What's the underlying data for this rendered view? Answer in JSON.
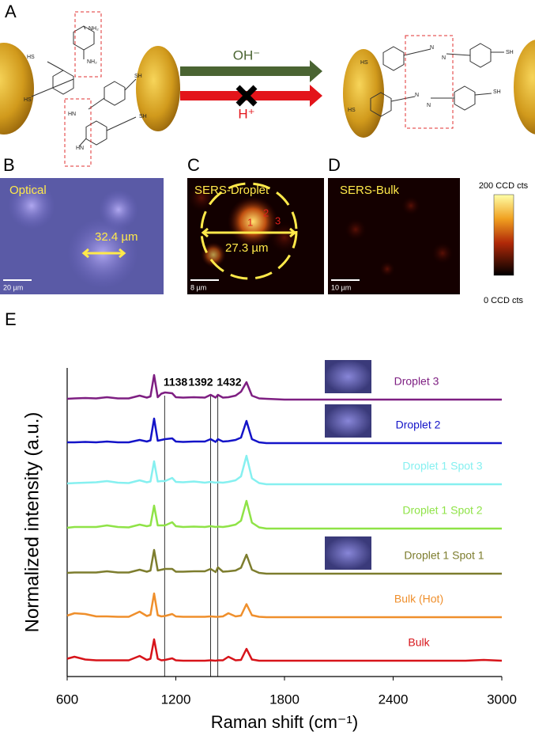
{
  "panels": {
    "a": {
      "label": "A",
      "arrow_up": "OH⁻",
      "arrow_down": "H⁺",
      "left_groups": [
        "NH₂",
        "NH₂",
        "HN",
        "HN"
      ],
      "left_thiols": [
        "HS",
        "HS",
        "SH",
        "SH"
      ],
      "right_thiols": [
        "HS",
        "HS",
        "SH",
        "SH"
      ],
      "azo": [
        "N",
        "N",
        "N",
        "N"
      ]
    },
    "b": {
      "label": "B",
      "title": "Optical",
      "size": "32.4 µm",
      "scale": "20 µm"
    },
    "c": {
      "label": "C",
      "title": "SERS-Droplet",
      "size": "27.3 µm",
      "scale": "8 µm",
      "spots": [
        "1",
        "2",
        "3"
      ]
    },
    "d": {
      "label": "D",
      "title": "SERS-Bulk",
      "scale": "10 µm",
      "colorbar_max": "200 CCD cts",
      "colorbar_min": "0 CCD cts"
    },
    "e": {
      "label": "E"
    }
  },
  "chart_data": {
    "type": "line",
    "xlabel": "Raman shift (cm⁻¹)",
    "ylabel": "Normalized intensity (a.u.)",
    "xlim": [
      600,
      3000
    ],
    "xticks": [
      600,
      1200,
      1800,
      2400,
      3000
    ],
    "ylim": [
      0,
      8
    ],
    "vlines": [
      1138,
      1392,
      1432
    ],
    "x": [
      600,
      640,
      700,
      760,
      820,
      880,
      940,
      1000,
      1040,
      1060,
      1080,
      1100,
      1120,
      1140,
      1180,
      1200,
      1240,
      1300,
      1360,
      1392,
      1420,
      1432,
      1460,
      1490,
      1530,
      1560,
      1590,
      1620,
      1660,
      1700,
      1800,
      2000,
      2200,
      2400,
      2600,
      2800,
      2900,
      3000
    ],
    "series": [
      {
        "name": "Bulk",
        "color": "#d7141a",
        "values": [
          0.45,
          0.5,
          0.43,
          0.41,
          0.41,
          0.41,
          0.41,
          0.52,
          0.42,
          0.45,
          0.94,
          0.45,
          0.41,
          0.42,
          0.46,
          0.41,
          0.4,
          0.4,
          0.4,
          0.41,
          0.4,
          0.41,
          0.41,
          0.5,
          0.41,
          0.42,
          0.7,
          0.43,
          0.4,
          0.4,
          0.4,
          0.4,
          0.4,
          0.4,
          0.4,
          0.4,
          0.42,
          0.4
        ]
      },
      {
        "name": "Bulk (Hot)",
        "color": "#ef8f2c",
        "values": [
          1.54,
          1.6,
          1.58,
          1.52,
          1.52,
          1.51,
          1.51,
          1.64,
          1.53,
          1.56,
          2.1,
          1.55,
          1.52,
          1.53,
          1.58,
          1.52,
          1.51,
          1.51,
          1.51,
          1.52,
          1.51,
          1.51,
          1.52,
          1.6,
          1.52,
          1.54,
          1.83,
          1.55,
          1.51,
          1.5,
          1.5,
          1.5,
          1.5,
          1.5,
          1.5,
          1.5,
          1.5,
          1.5
        ]
      },
      {
        "name": "Droplet 1 Spot 1",
        "color": "#7d7d2e",
        "values": [
          2.62,
          2.63,
          2.63,
          2.63,
          2.66,
          2.63,
          2.63,
          2.7,
          2.65,
          2.68,
          3.2,
          2.68,
          2.7,
          2.72,
          2.72,
          2.65,
          2.65,
          2.66,
          2.66,
          2.72,
          2.64,
          2.76,
          2.65,
          2.66,
          2.68,
          2.75,
          3.08,
          2.7,
          2.62,
          2.6,
          2.6,
          2.6,
          2.6,
          2.6,
          2.6,
          2.6,
          2.6,
          2.6
        ]
      },
      {
        "name": "Droplet 1 Spot 2",
        "color": "#8fe347",
        "values": [
          3.76,
          3.78,
          3.78,
          3.78,
          3.82,
          3.78,
          3.77,
          3.84,
          3.8,
          3.82,
          4.32,
          3.82,
          3.82,
          3.82,
          3.9,
          3.8,
          3.78,
          3.79,
          3.78,
          3.8,
          3.78,
          3.79,
          3.78,
          3.8,
          3.84,
          3.94,
          4.44,
          3.89,
          3.77,
          3.74,
          3.74,
          3.74,
          3.74,
          3.74,
          3.74,
          3.74,
          3.74,
          3.74
        ]
      },
      {
        "name": "Droplet 1 Spot 3",
        "color": "#86f0f0",
        "values": [
          4.88,
          4.89,
          4.9,
          4.91,
          4.94,
          4.9,
          4.89,
          4.96,
          4.91,
          4.93,
          5.44,
          4.93,
          4.94,
          4.94,
          5.02,
          4.92,
          4.91,
          4.93,
          4.9,
          4.92,
          4.9,
          4.91,
          4.9,
          4.92,
          4.96,
          5.06,
          5.58,
          5.01,
          4.89,
          4.86,
          4.86,
          4.86,
          4.86,
          4.86,
          4.86,
          4.86,
          4.86,
          4.86
        ]
      },
      {
        "name": "Droplet 2",
        "color": "#1414c8",
        "values": [
          5.92,
          5.92,
          5.93,
          5.92,
          5.94,
          5.92,
          5.92,
          5.98,
          5.94,
          5.97,
          6.52,
          5.96,
          5.98,
          6.0,
          6.02,
          5.94,
          5.93,
          5.94,
          5.94,
          6.0,
          5.93,
          6.0,
          5.94,
          5.95,
          5.98,
          6.04,
          6.46,
          6.0,
          5.92,
          5.9,
          5.9,
          5.9,
          5.9,
          5.9,
          5.9,
          5.9,
          5.9,
          5.9
        ]
      },
      {
        "name": "Droplet 3",
        "color": "#7e1f82",
        "values": [
          7.02,
          7.03,
          7.04,
          7.03,
          7.06,
          7.03,
          7.03,
          7.1,
          7.05,
          7.08,
          7.62,
          7.06,
          7.15,
          7.18,
          7.16,
          7.06,
          7.05,
          7.06,
          7.05,
          7.12,
          7.05,
          7.12,
          7.05,
          7.06,
          7.1,
          7.2,
          7.44,
          7.1,
          7.03,
          7.02,
          7.0,
          7.0,
          7.0,
          7.0,
          7.0,
          7.0,
          7.0,
          7.0
        ]
      }
    ]
  }
}
